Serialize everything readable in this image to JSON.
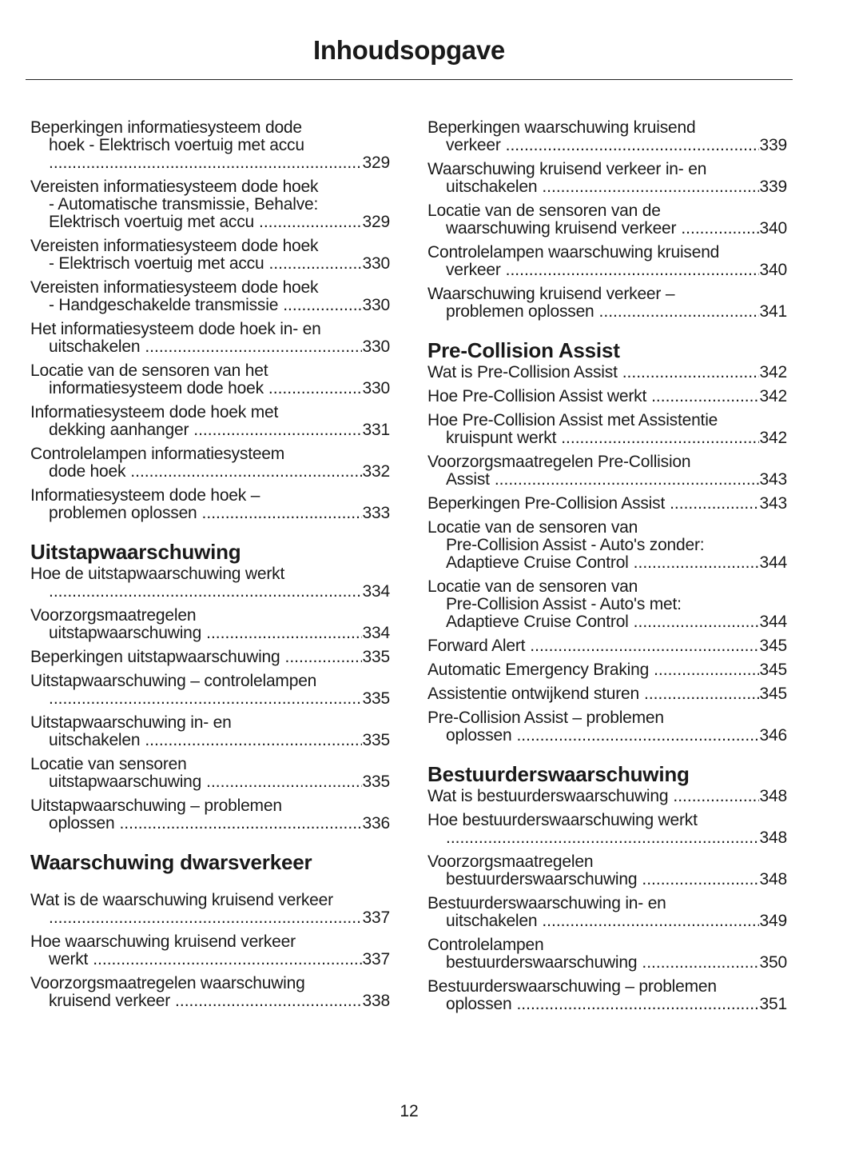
{
  "title": "Inhoudsopgave",
  "page_number": "12",
  "columns": [
    {
      "sections": [
        {
          "heading": "",
          "entries": [
            {
              "lines": [
                "Beperkingen informatiesysteem dode",
                "hoek - Elektrisch voertuig met accu",
                ""
              ],
              "page": "329"
            },
            {
              "lines": [
                "Vereisten informatiesysteem dode hoek",
                "- Automatische transmissie, Behalve:",
                "Elektrisch voertuig met accu"
              ],
              "page": "329"
            },
            {
              "lines": [
                "Vereisten informatiesysteem dode hoek",
                "- Elektrisch voertuig met accu"
              ],
              "page": "330"
            },
            {
              "lines": [
                "Vereisten informatiesysteem dode hoek",
                "- Handgeschakelde transmissie"
              ],
              "page": "330"
            },
            {
              "lines": [
                "Het informatiesysteem dode hoek in- en",
                "uitschakelen"
              ],
              "page": "330"
            },
            {
              "lines": [
                "Locatie van de sensoren van het",
                "informatiesysteem dode hoek"
              ],
              "page": "330"
            },
            {
              "lines": [
                "Informatiesysteem dode hoek met",
                "dekking aanhanger"
              ],
              "page": "331"
            },
            {
              "lines": [
                "Controlelampen informatiesysteem",
                "dode hoek"
              ],
              "page": "332"
            },
            {
              "lines": [
                "Informatiesysteem dode hoek –",
                "problemen oplossen"
              ],
              "page": "333"
            }
          ]
        },
        {
          "heading": "Uitstapwaarschuwing",
          "entries": [
            {
              "lines": [
                "Hoe de uitstapwaarschuwing werkt",
                ""
              ],
              "page": "334"
            },
            {
              "lines": [
                "Voorzorgsmaatregelen",
                "uitstapwaarschuwing"
              ],
              "page": "334"
            },
            {
              "lines": [
                "Beperkingen uitstapwaarschuwing"
              ],
              "page": "335"
            },
            {
              "lines": [
                "Uitstapwaarschuwing – controlelampen",
                ""
              ],
              "page": "335"
            },
            {
              "lines": [
                "Uitstapwaarschuwing in- en",
                "uitschakelen"
              ],
              "page": "335"
            },
            {
              "lines": [
                "Locatie van sensoren",
                "uitstapwaarschuwing"
              ],
              "page": "335"
            },
            {
              "lines": [
                "Uitstapwaarschuwing – problemen",
                "oplossen"
              ],
              "page": "336"
            }
          ]
        },
        {
          "heading": "Waarschuwing dwarsverkeer",
          "gap": true,
          "entries": [
            {
              "lines": [
                "Wat is de waarschuwing kruisend verkeer",
                ""
              ],
              "page": "337"
            },
            {
              "lines": [
                "Hoe waarschuwing kruisend verkeer",
                "werkt"
              ],
              "page": "337"
            },
            {
              "lines": [
                "Voorzorgsmaatregelen waarschuwing",
                "kruisend verkeer"
              ],
              "page": "338"
            }
          ]
        }
      ]
    },
    {
      "sections": [
        {
          "heading": "",
          "entries": [
            {
              "lines": [
                "Beperkingen waarschuwing kruisend",
                "verkeer"
              ],
              "page": "339"
            },
            {
              "lines": [
                "Waarschuwing kruisend verkeer in- en",
                "uitschakelen"
              ],
              "page": "339"
            },
            {
              "lines": [
                "Locatie van de sensoren van de",
                "waarschuwing kruisend verkeer"
              ],
              "page": "340"
            },
            {
              "lines": [
                "Controlelampen waarschuwing kruisend",
                "verkeer"
              ],
              "page": "340"
            },
            {
              "lines": [
                "Waarschuwing kruisend verkeer –",
                "problemen oplossen"
              ],
              "page": "341"
            }
          ]
        },
        {
          "heading": "Pre-Collision Assist",
          "entries": [
            {
              "lines": [
                "Wat is Pre-Collision Assist"
              ],
              "page": "342"
            },
            {
              "lines": [
                "Hoe Pre-Collision Assist werkt"
              ],
              "page": "342"
            },
            {
              "lines": [
                "Hoe Pre-Collision Assist met Assistentie",
                "kruispunt werkt"
              ],
              "page": "342"
            },
            {
              "lines": [
                "Voorzorgsmaatregelen Pre-Collision",
                "Assist"
              ],
              "page": "343"
            },
            {
              "lines": [
                "Beperkingen Pre-Collision Assist"
              ],
              "page": "343"
            },
            {
              "lines": [
                "Locatie van de sensoren van",
                "Pre-Collision Assist - Auto's zonder:",
                "Adaptieve Cruise Control"
              ],
              "page": "344"
            },
            {
              "lines": [
                "Locatie van de sensoren van",
                "Pre-Collision Assist - Auto's met:",
                "Adaptieve Cruise Control"
              ],
              "page": "344"
            },
            {
              "lines": [
                "Forward Alert"
              ],
              "page": "345"
            },
            {
              "lines": [
                "Automatic Emergency Braking"
              ],
              "page": "345"
            },
            {
              "lines": [
                "Assistentie ontwijkend sturen"
              ],
              "page": "345"
            },
            {
              "lines": [
                "Pre-Collision Assist – problemen",
                "oplossen"
              ],
              "page": "346"
            }
          ]
        },
        {
          "heading": "Bestuurderswaarschuwing",
          "entries": [
            {
              "lines": [
                "Wat is bestuurderswaarschuwing"
              ],
              "page": "348"
            },
            {
              "lines": [
                "Hoe bestuurderswaarschuwing werkt",
                ""
              ],
              "page": "348"
            },
            {
              "lines": [
                "Voorzorgsmaatregelen",
                "bestuurderswaarschuwing"
              ],
              "page": "348"
            },
            {
              "lines": [
                "Bestuurderswaarschuwing in- en",
                "uitschakelen"
              ],
              "page": "349"
            },
            {
              "lines": [
                "Controlelampen",
                "bestuurderswaarschuwing"
              ],
              "page": "350"
            },
            {
              "lines": [
                "Bestuurderswaarschuwing – problemen",
                "oplossen"
              ],
              "page": "351"
            }
          ]
        }
      ]
    }
  ]
}
